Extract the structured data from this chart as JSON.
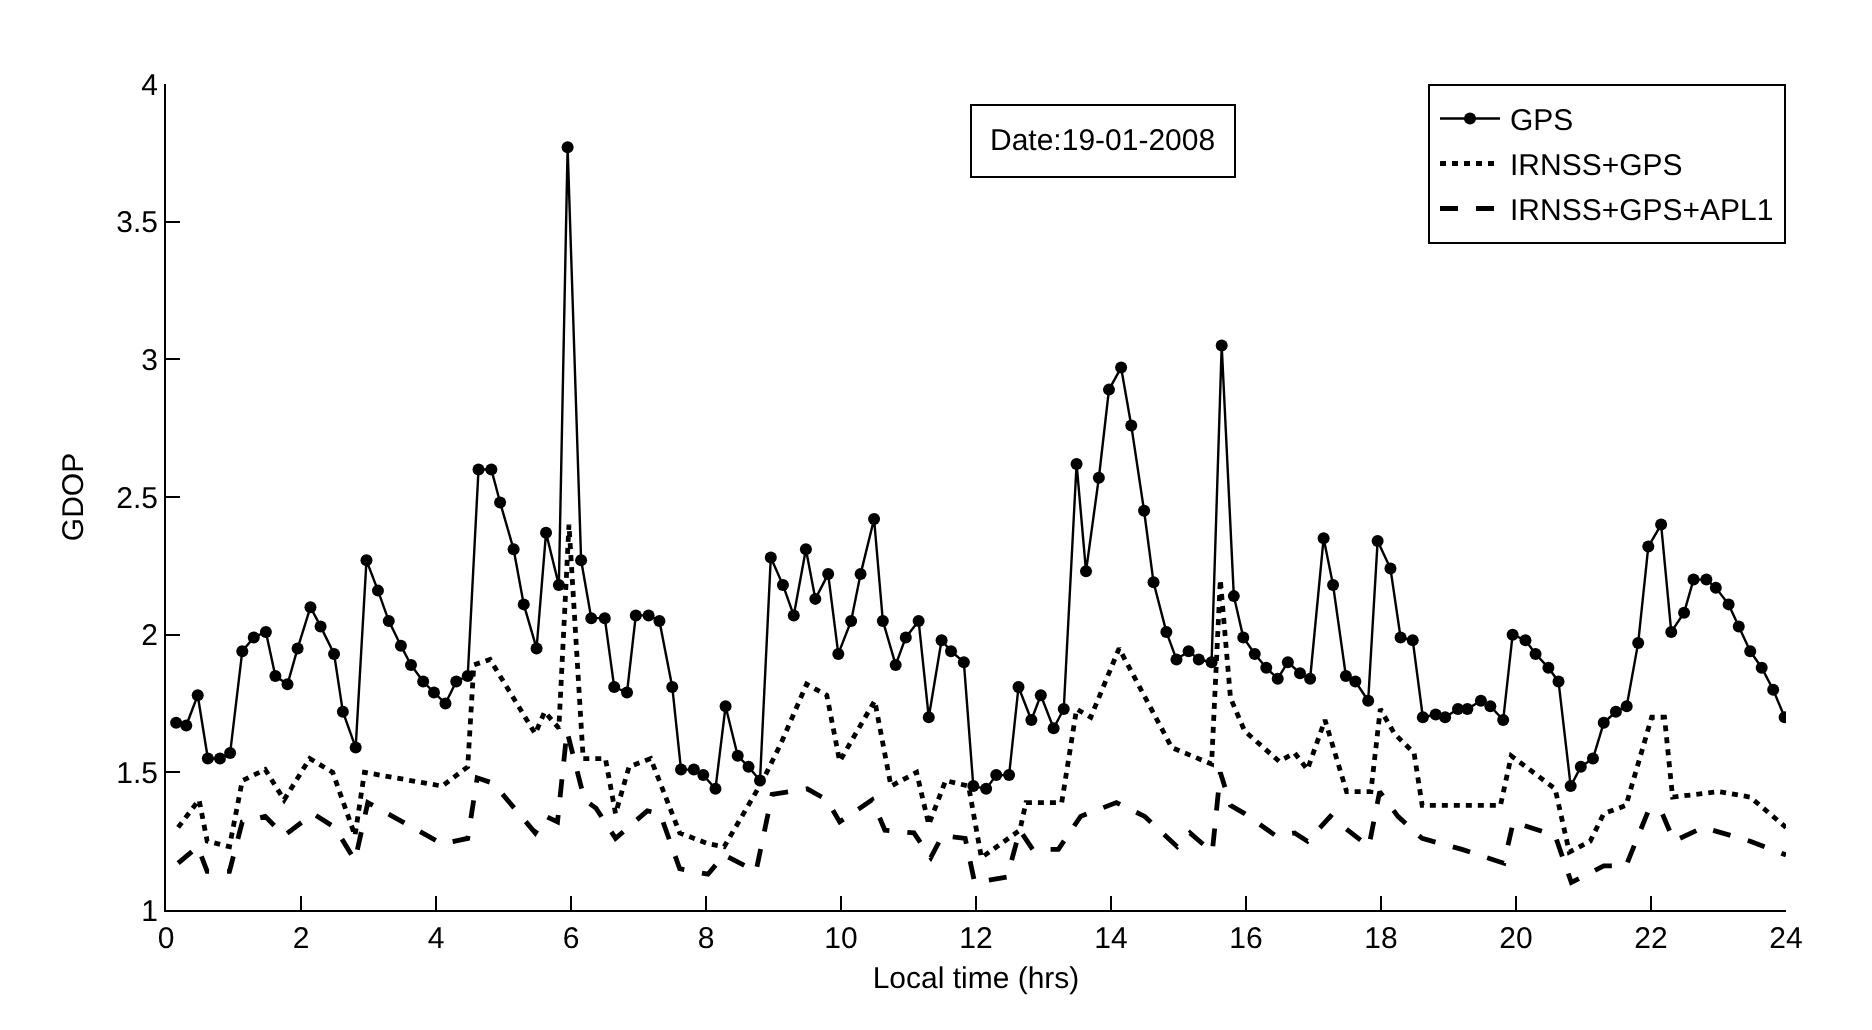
{
  "chart_data": {
    "type": "line",
    "xlabel": "Local time (hrs)",
    "ylabel": "GDOP",
    "annotations": [
      "Date:19-01-2008"
    ],
    "xlim": [
      0,
      24
    ],
    "xticks": [
      0,
      2,
      4,
      6,
      8,
      10,
      12,
      14,
      16,
      18,
      20,
      22,
      24
    ],
    "ylim": [
      1,
      4
    ],
    "yticks": [
      1,
      1.5,
      2,
      2.5,
      3,
      3.5,
      4
    ],
    "grid": false,
    "legend": "top right",
    "series": [
      {
        "name": "GPS",
        "color": "#000000",
        "line_style": "solid",
        "marker": "circle",
        "x": [
          0.15,
          0.3,
          0.47,
          0.62,
          0.8,
          0.95,
          1.13,
          1.3,
          1.48,
          1.62,
          1.8,
          1.95,
          2.14,
          2.29,
          2.49,
          2.62,
          2.81,
          2.97,
          3.14,
          3.3,
          3.48,
          3.63,
          3.81,
          3.97,
          4.14,
          4.3,
          4.47,
          4.63,
          4.82,
          4.95,
          5.15,
          5.3,
          5.49,
          5.63,
          5.82,
          5.95,
          6.15,
          6.3,
          6.5,
          6.64,
          6.83,
          6.96,
          7.15,
          7.31,
          7.5,
          7.63,
          7.82,
          7.96,
          8.14,
          8.29,
          8.47,
          8.63,
          8.8,
          8.96,
          9.14,
          9.3,
          9.48,
          9.62,
          9.81,
          9.96,
          10.15,
          10.29,
          10.49,
          10.62,
          10.81,
          10.96,
          11.15,
          11.3,
          11.49,
          11.63,
          11.82,
          11.96,
          12.15,
          12.3,
          12.49,
          12.63,
          12.82,
          12.96,
          13.15,
          13.3,
          13.49,
          13.63,
          13.82,
          13.97,
          14.15,
          14.3,
          14.49,
          14.63,
          14.82,
          14.97,
          15.15,
          15.3,
          15.49,
          15.64,
          15.82,
          15.96,
          16.13,
          16.3,
          16.47,
          16.62,
          16.8,
          16.95,
          17.15,
          17.29,
          17.48,
          17.62,
          17.81,
          17.95,
          18.14,
          18.29,
          18.47,
          18.62,
          18.81,
          18.95,
          19.14,
          19.28,
          19.48,
          19.62,
          19.81,
          19.95,
          20.14,
          20.29,
          20.48,
          20.63,
          20.81,
          20.96,
          21.14,
          21.3,
          21.48,
          21.64,
          21.81,
          21.96,
          22.15,
          22.3,
          22.49,
          22.63,
          22.82,
          22.96,
          23.15,
          23.3,
          23.47,
          23.64,
          23.81,
          23.98
        ],
        "values": [
          1.68,
          1.67,
          1.78,
          1.55,
          1.55,
          1.57,
          1.94,
          1.99,
          2.01,
          1.85,
          1.82,
          1.95,
          2.1,
          2.03,
          1.93,
          1.72,
          1.59,
          2.27,
          2.16,
          2.05,
          1.96,
          1.89,
          1.83,
          1.79,
          1.75,
          1.83,
          1.85,
          2.6,
          2.6,
          2.48,
          2.31,
          2.11,
          1.95,
          2.37,
          2.18,
          3.77,
          2.27,
          2.06,
          2.06,
          1.81,
          1.79,
          2.07,
          2.07,
          2.05,
          1.81,
          1.51,
          1.51,
          1.49,
          1.44,
          1.74,
          1.56,
          1.52,
          1.47,
          2.28,
          2.18,
          2.07,
          2.31,
          2.13,
          2.22,
          1.93,
          2.05,
          2.22,
          2.42,
          2.05,
          1.89,
          1.99,
          2.05,
          1.7,
          1.98,
          1.94,
          1.9,
          1.45,
          1.44,
          1.49,
          1.49,
          1.81,
          1.69,
          1.78,
          1.66,
          1.73,
          2.62,
          2.23,
          2.57,
          2.89,
          2.97,
          2.76,
          2.45,
          2.19,
          2.01,
          1.91,
          1.94,
          1.91,
          1.9,
          3.05,
          2.14,
          1.99,
          1.93,
          1.88,
          1.84,
          1.9,
          1.86,
          1.84,
          2.35,
          2.18,
          1.85,
          1.83,
          1.76,
          2.34,
          2.24,
          1.99,
          1.98,
          1.7,
          1.71,
          1.7,
          1.73,
          1.73,
          1.76,
          1.74,
          1.69,
          2.0,
          1.98,
          1.93,
          1.88,
          1.83,
          1.45,
          1.52,
          1.55,
          1.68,
          1.72,
          1.74,
          1.97,
          2.32,
          2.4,
          2.01,
          2.08,
          2.2,
          2.2,
          2.17,
          2.11,
          2.03,
          1.94,
          1.88,
          1.8,
          1.7
        ]
      },
      {
        "name": "IRNSS+GPS",
        "color": "#000000",
        "line_style": "dotted",
        "marker": "none",
        "x": [
          0.18,
          0.49,
          0.61,
          0.94,
          1.13,
          1.47,
          1.75,
          2.13,
          2.47,
          2.8,
          2.94,
          4.09,
          4.47,
          4.56,
          4.8,
          5.47,
          5.61,
          5.82,
          5.97,
          6.18,
          6.51,
          6.66,
          6.86,
          7.18,
          7.61,
          8.04,
          8.27,
          8.84,
          9.12,
          9.49,
          9.79,
          9.98,
          10.5,
          10.74,
          11.12,
          11.3,
          11.55,
          11.89,
          12.08,
          12.65,
          12.74,
          13.27,
          13.49,
          13.7,
          14.12,
          14.9,
          15.49,
          15.62,
          15.77,
          15.98,
          16.49,
          16.72,
          16.91,
          17.17,
          17.49,
          17.85,
          17.99,
          18.2,
          18.49,
          18.61,
          19.77,
          19.93,
          20.58,
          20.79,
          21.1,
          21.3,
          21.63,
          22.01,
          22.2,
          22.32,
          23.01,
          23.47,
          24
        ],
        "values": [
          1.3,
          1.4,
          1.25,
          1.23,
          1.47,
          1.51,
          1.4,
          1.55,
          1.5,
          1.27,
          1.5,
          1.45,
          1.52,
          1.89,
          1.91,
          1.64,
          1.72,
          1.66,
          2.4,
          1.55,
          1.55,
          1.35,
          1.52,
          1.55,
          1.28,
          1.24,
          1.23,
          1.47,
          1.61,
          1.82,
          1.78,
          1.54,
          1.76,
          1.45,
          1.5,
          1.31,
          1.47,
          1.45,
          1.19,
          1.29,
          1.39,
          1.39,
          1.73,
          1.7,
          1.95,
          1.59,
          1.53,
          2.2,
          1.77,
          1.65,
          1.54,
          1.57,
          1.51,
          1.69,
          1.43,
          1.43,
          1.73,
          1.64,
          1.57,
          1.38,
          1.38,
          1.56,
          1.44,
          1.21,
          1.25,
          1.35,
          1.38,
          1.7,
          1.7,
          1.41,
          1.43,
          1.41,
          1.3
        ]
      },
      {
        "name": "IRNSS+GPS+APL1",
        "color": "#000000",
        "line_style": "dashed",
        "marker": "none",
        "x": [
          0.18,
          0.47,
          0.61,
          0.94,
          1.13,
          1.47,
          1.75,
          2.18,
          2.5,
          2.8,
          2.99,
          4.09,
          4.47,
          4.61,
          4.85,
          5.47,
          5.63,
          5.8,
          5.94,
          6.2,
          6.37,
          6.66,
          7.13,
          7.32,
          7.61,
          8.03,
          8.27,
          8.74,
          8.98,
          9.5,
          9.79,
          9.98,
          10.46,
          10.65,
          11.08,
          11.33,
          11.5,
          11.84,
          11.98,
          12.46,
          12.65,
          12.84,
          13.22,
          13.55,
          14.08,
          14.5,
          14.98,
          15.17,
          15.5,
          15.62,
          15.77,
          15.98,
          16.44,
          16.72,
          16.91,
          17.25,
          17.82,
          17.98,
          18.25,
          18.61,
          19.2,
          19.82,
          19.96,
          20.58,
          20.82,
          21.3,
          21.63,
          21.96,
          22.15,
          22.34,
          22.77,
          23.47,
          24
        ],
        "values": [
          1.17,
          1.23,
          1.14,
          1.14,
          1.32,
          1.34,
          1.27,
          1.35,
          1.3,
          1.18,
          1.39,
          1.24,
          1.26,
          1.48,
          1.46,
          1.28,
          1.34,
          1.32,
          1.65,
          1.4,
          1.37,
          1.26,
          1.36,
          1.35,
          1.15,
          1.13,
          1.2,
          1.14,
          1.42,
          1.44,
          1.4,
          1.32,
          1.4,
          1.29,
          1.28,
          1.19,
          1.27,
          1.26,
          1.1,
          1.12,
          1.29,
          1.22,
          1.22,
          1.34,
          1.39,
          1.34,
          1.23,
          1.28,
          1.21,
          1.5,
          1.38,
          1.35,
          1.27,
          1.28,
          1.25,
          1.34,
          1.23,
          1.43,
          1.34,
          1.26,
          1.22,
          1.17,
          1.32,
          1.27,
          1.1,
          1.16,
          1.16,
          1.36,
          1.36,
          1.25,
          1.3,
          1.25,
          1.2
        ]
      }
    ]
  }
}
